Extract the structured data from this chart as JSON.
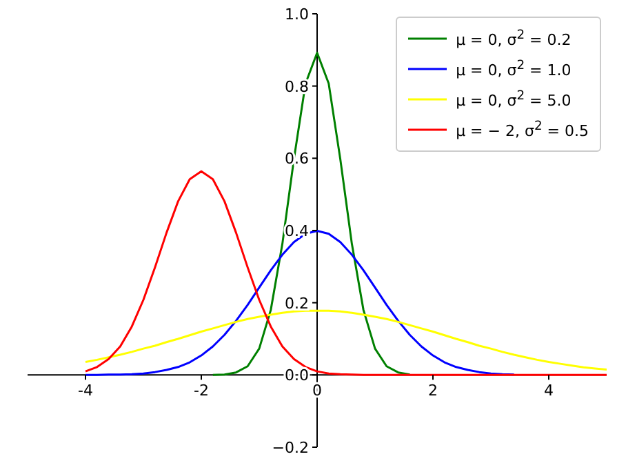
{
  "chart_data": {
    "type": "line",
    "x": [
      -4,
      -3.8,
      -3.6,
      -3.4,
      -3.2,
      -3,
      -2.8,
      -2.6,
      -2.4,
      -2.2,
      -2,
      -1.8,
      -1.6,
      -1.4,
      -1.2,
      -1,
      -0.8,
      -0.6,
      -0.4,
      -0.2,
      0,
      0.2,
      0.4,
      0.6,
      0.8,
      1,
      1.2,
      1.4,
      1.6,
      1.8,
      2,
      2.2,
      2.4,
      2.6,
      2.8,
      3,
      3.2,
      3.4,
      3.6,
      3.8,
      4,
      4.2,
      4.4,
      4.6,
      4.8,
      5
    ],
    "series": [
      {
        "name": "μ = 0, σ$^{2}$ = 0.2",
        "color": "#008000",
        "values": [
          null,
          null,
          null,
          null,
          null,
          null,
          null,
          null,
          null,
          null,
          null,
          0,
          0.001,
          0.007,
          0.024,
          0.073,
          0.18,
          0.363,
          0.598,
          0.807,
          0.892,
          0.807,
          0.598,
          0.363,
          0.18,
          0.073,
          0.024,
          0.007,
          0.001,
          null,
          null,
          null,
          null,
          null,
          null,
          null,
          null,
          null,
          null,
          null,
          null,
          null,
          null,
          null,
          null,
          null
        ]
      },
      {
        "name": "μ = 0, σ$^{2}$ = 1.0",
        "color": "#0000ff",
        "values": [
          0,
          0,
          0.001,
          0.001,
          0.002,
          0.004,
          0.008,
          0.014,
          0.022,
          0.035,
          0.054,
          0.079,
          0.111,
          0.15,
          0.194,
          0.242,
          0.29,
          0.333,
          0.368,
          0.391,
          0.399,
          0.391,
          0.368,
          0.333,
          0.29,
          0.242,
          0.194,
          0.15,
          0.111,
          0.079,
          0.054,
          0.035,
          0.022,
          0.014,
          0.008,
          0.004,
          0.002,
          0.001,
          null,
          null,
          null,
          null,
          null,
          null,
          null,
          null
        ]
      },
      {
        "name": "μ = 0, σ$^{2}$ = 5.0",
        "color": "#ffff00",
        "values": [
          0.036,
          0.042,
          0.049,
          0.056,
          0.064,
          0.073,
          0.081,
          0.091,
          0.1,
          0.11,
          0.12,
          0.129,
          0.138,
          0.147,
          0.155,
          0.161,
          0.167,
          0.172,
          0.176,
          0.178,
          0.178,
          0.178,
          0.176,
          0.172,
          0.167,
          0.161,
          0.155,
          0.147,
          0.138,
          0.129,
          0.12,
          0.11,
          0.1,
          0.091,
          0.081,
          0.073,
          0.064,
          0.056,
          0.049,
          0.042,
          0.036,
          0.031,
          0.026,
          0.021,
          0.018,
          0.015
        ]
      },
      {
        "name": "μ = − 2, σ$^{2}$ = 0.5",
        "color": "#ff0000",
        "values": [
          0.01,
          0.022,
          0.044,
          0.079,
          0.134,
          0.208,
          0.298,
          0.394,
          0.481,
          0.542,
          0.564,
          0.542,
          0.481,
          0.394,
          0.298,
          0.208,
          0.134,
          0.079,
          0.044,
          0.022,
          0.01,
          0.004,
          0.002,
          0.001,
          0,
          0,
          0,
          0,
          0,
          0,
          0,
          0,
          0,
          0,
          0,
          0,
          0,
          0,
          0,
          0,
          0,
          0,
          0,
          0,
          0,
          0
        ]
      }
    ],
    "xlim": [
      -5,
      5
    ],
    "xticks": [
      -4,
      -2,
      0,
      2,
      4
    ],
    "ylim": [
      -0.2,
      1.0
    ],
    "yticks": [
      {
        "value": -0.2,
        "label": "−0.2"
      },
      {
        "value": 0,
        "label": "0.0"
      },
      {
        "value": 0.2,
        "label": "0.2"
      },
      {
        "value": 0.4,
        "label": "0.4"
      },
      {
        "value": 0.6,
        "label": "0.6"
      },
      {
        "value": 0.8,
        "label": "0.8"
      },
      {
        "value": 1.0,
        "label": "1.0"
      }
    ],
    "grid": false,
    "legend": "top right",
    "marker": "none",
    "line_style": "solid"
  }
}
